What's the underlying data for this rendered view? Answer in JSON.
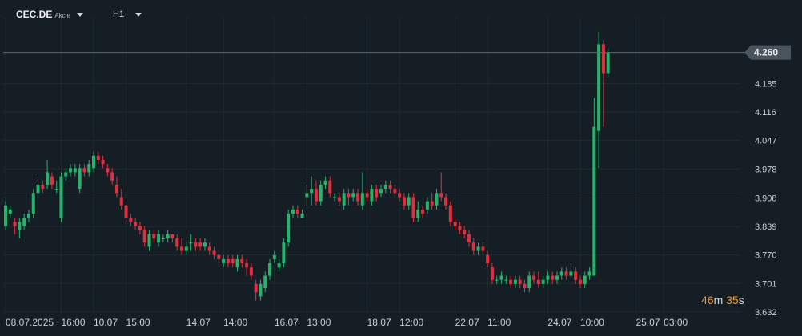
{
  "header": {
    "symbol": "CEC.DE",
    "symbol_type": "Akcie",
    "timeframe": "H1"
  },
  "countdown": {
    "minutes": "46",
    "minutes_unit": "m",
    "seconds": "35",
    "seconds_unit": "s"
  },
  "colors": {
    "background": "#161e25",
    "grid": "#1f2a32",
    "up": "#26b36b",
    "down": "#e0303f",
    "label_bg": "#4a545c",
    "label_text": "#eef1f3"
  },
  "chart_data": {
    "type": "candlestick",
    "title": "",
    "xlabel": "",
    "ylabel": "",
    "ylim": [
      3.632,
      4.329
    ],
    "y_ticks": [
      "4.260",
      "4.185",
      "4.116",
      "4.047",
      "3.978",
      "3.908",
      "3.839",
      "3.770",
      "3.701",
      "3.632"
    ],
    "x_ticks": [
      {
        "label": "08.07.2025",
        "index": 0
      },
      {
        "label": "16:00",
        "index": 12
      },
      {
        "label": "10.07",
        "index": 19
      },
      {
        "label": "15:00",
        "index": 26
      },
      {
        "label": "14.07",
        "index": 39
      },
      {
        "label": "14:00",
        "index": 47
      },
      {
        "label": "16.07",
        "index": 58
      },
      {
        "label": "13:00",
        "index": 65
      },
      {
        "label": "18.07",
        "index": 78
      },
      {
        "label": "12:00",
        "index": 85
      },
      {
        "label": "22.07",
        "index": 97
      },
      {
        "label": "11:00",
        "index": 104
      },
      {
        "label": "24.07",
        "index": 117
      },
      {
        "label": "10:00",
        "index": 124
      },
      {
        "label": "25.07",
        "index": 136
      },
      {
        "label": "03:00",
        "index": 142
      }
    ],
    "current_price": "4.260",
    "series": [
      {
        "ohlc": [
          [
            3.84,
            3.89,
            3.9,
            3.83
          ],
          [
            3.87,
            3.88,
            3.89,
            3.86
          ],
          [
            3.85,
            3.84,
            3.86,
            3.82
          ],
          [
            3.83,
            3.85,
            3.86,
            3.81
          ],
          [
            3.84,
            3.86,
            3.87,
            3.83
          ],
          [
            3.86,
            3.87,
            3.88,
            3.85
          ],
          [
            3.87,
            3.92,
            3.93,
            3.86
          ],
          [
            3.92,
            3.94,
            3.96,
            3.91
          ],
          [
            3.94,
            3.93,
            3.95,
            3.92
          ],
          [
            3.94,
            3.97,
            4.0,
            3.93
          ],
          [
            3.96,
            3.94,
            3.97,
            3.93
          ],
          [
            3.93,
            3.93,
            3.95,
            3.92
          ],
          [
            3.86,
            3.96,
            3.97,
            3.85
          ],
          [
            3.96,
            3.97,
            3.98,
            3.95
          ],
          [
            3.97,
            3.98,
            3.99,
            3.96
          ],
          [
            3.97,
            3.98,
            3.99,
            3.96
          ],
          [
            3.93,
            3.98,
            3.99,
            3.92
          ],
          [
            3.98,
            3.97,
            3.99,
            3.96
          ],
          [
            3.97,
            3.99,
            4.0,
            3.96
          ],
          [
            3.98,
            4.01,
            4.02,
            3.97
          ],
          [
            4.01,
            4.0,
            4.02,
            3.99
          ],
          [
            4.0,
            3.99,
            4.01,
            3.98
          ],
          [
            3.98,
            3.97,
            3.99,
            3.96
          ],
          [
            3.97,
            3.95,
            3.98,
            3.94
          ],
          [
            3.94,
            3.92,
            3.96,
            3.91
          ],
          [
            3.91,
            3.89,
            3.93,
            3.88
          ],
          [
            3.89,
            3.86,
            3.9,
            3.85
          ],
          [
            3.86,
            3.85,
            3.87,
            3.84
          ],
          [
            3.85,
            3.84,
            3.86,
            3.83
          ],
          [
            3.84,
            3.83,
            3.85,
            3.82
          ],
          [
            3.83,
            3.8,
            3.84,
            3.79
          ],
          [
            3.79,
            3.82,
            3.83,
            3.78
          ],
          [
            3.82,
            3.81,
            3.83,
            3.8
          ],
          [
            3.8,
            3.82,
            3.83,
            3.79
          ],
          [
            3.81,
            3.81,
            3.82,
            3.8
          ],
          [
            3.81,
            3.82,
            3.83,
            3.8
          ],
          [
            3.82,
            3.81,
            3.82,
            3.8
          ],
          [
            3.81,
            3.79,
            3.82,
            3.78
          ],
          [
            3.79,
            3.78,
            3.81,
            3.77
          ],
          [
            3.78,
            3.79,
            3.8,
            3.77
          ],
          [
            3.8,
            3.8,
            3.82,
            3.78
          ],
          [
            3.8,
            3.79,
            3.81,
            3.78
          ],
          [
            3.8,
            3.79,
            3.81,
            3.78
          ],
          [
            3.79,
            3.8,
            3.81,
            3.78
          ],
          [
            3.79,
            3.78,
            3.8,
            3.77
          ],
          [
            3.78,
            3.77,
            3.79,
            3.76
          ],
          [
            3.77,
            3.76,
            3.78,
            3.75
          ],
          [
            3.75,
            3.76,
            3.77,
            3.74
          ],
          [
            3.76,
            3.75,
            3.77,
            3.74
          ],
          [
            3.76,
            3.75,
            3.77,
            3.74
          ],
          [
            3.74,
            3.76,
            3.77,
            3.73
          ],
          [
            3.76,
            3.75,
            3.77,
            3.74
          ],
          [
            3.75,
            3.74,
            3.76,
            3.72
          ],
          [
            3.74,
            3.72,
            3.75,
            3.71
          ],
          [
            3.7,
            3.68,
            3.71,
            3.66
          ],
          [
            3.67,
            3.7,
            3.71,
            3.66
          ],
          [
            3.69,
            3.72,
            3.73,
            3.68
          ],
          [
            3.72,
            3.75,
            3.76,
            3.71
          ],
          [
            3.76,
            3.77,
            3.78,
            3.75
          ],
          [
            3.74,
            3.75,
            3.76,
            3.73
          ],
          [
            3.75,
            3.8,
            3.81,
            3.74
          ],
          [
            3.8,
            3.87,
            3.88,
            3.79
          ],
          [
            3.87,
            3.88,
            3.89,
            3.86
          ],
          [
            3.88,
            3.87,
            3.89,
            3.86
          ],
          [
            3.86,
            3.87,
            3.88,
            3.86
          ],
          [
            3.91,
            3.92,
            3.94,
            3.89
          ],
          [
            3.92,
            3.93,
            3.96,
            3.89
          ],
          [
            3.93,
            3.9,
            3.95,
            3.89
          ],
          [
            3.9,
            3.94,
            3.95,
            3.89
          ],
          [
            3.94,
            3.95,
            3.96,
            3.93
          ],
          [
            3.95,
            3.92,
            3.96,
            3.91
          ],
          [
            3.91,
            3.91,
            3.92,
            3.9
          ],
          [
            3.91,
            3.9,
            3.92,
            3.89
          ],
          [
            3.89,
            3.92,
            3.93,
            3.88
          ],
          [
            3.92,
            3.91,
            3.93,
            3.89
          ],
          [
            3.91,
            3.92,
            3.93,
            3.9
          ],
          [
            3.92,
            3.9,
            3.93,
            3.89
          ],
          [
            3.89,
            3.92,
            3.97,
            3.88
          ],
          [
            3.92,
            3.91,
            3.93,
            3.9
          ],
          [
            3.9,
            3.93,
            3.94,
            3.89
          ],
          [
            3.93,
            3.91,
            3.94,
            3.9
          ],
          [
            3.92,
            3.93,
            3.94,
            3.91
          ],
          [
            3.93,
            3.94,
            3.95,
            3.92
          ],
          [
            3.94,
            3.93,
            3.95,
            3.92
          ],
          [
            3.93,
            3.92,
            3.94,
            3.91
          ],
          [
            3.92,
            3.91,
            3.93,
            3.9
          ],
          [
            3.91,
            3.89,
            3.92,
            3.88
          ],
          [
            3.89,
            3.91,
            3.92,
            3.88
          ],
          [
            3.91,
            3.86,
            3.92,
            3.85
          ],
          [
            3.86,
            3.88,
            3.9,
            3.85
          ],
          [
            3.88,
            3.87,
            3.89,
            3.86
          ],
          [
            3.88,
            3.9,
            3.91,
            3.87
          ],
          [
            3.9,
            3.89,
            3.92,
            3.88
          ],
          [
            3.89,
            3.92,
            3.93,
            3.88
          ],
          [
            3.92,
            3.91,
            3.97,
            3.9
          ],
          [
            3.91,
            3.89,
            3.92,
            3.88
          ],
          [
            3.89,
            3.85,
            3.9,
            3.84
          ],
          [
            3.85,
            3.84,
            3.86,
            3.83
          ],
          [
            3.84,
            3.83,
            3.85,
            3.82
          ],
          [
            3.83,
            3.82,
            3.84,
            3.81
          ],
          [
            3.82,
            3.8,
            3.83,
            3.79
          ],
          [
            3.8,
            3.78,
            3.81,
            3.77
          ],
          [
            3.78,
            3.79,
            3.8,
            3.77
          ],
          [
            3.79,
            3.78,
            3.8,
            3.77
          ],
          [
            3.77,
            3.75,
            3.78,
            3.74
          ],
          [
            3.74,
            3.71,
            3.75,
            3.7
          ],
          [
            3.71,
            3.71,
            3.72,
            3.7
          ],
          [
            3.71,
            3.72,
            3.73,
            3.7
          ],
          [
            3.71,
            3.71,
            3.72,
            3.7
          ],
          [
            3.71,
            3.7,
            3.72,
            3.69
          ],
          [
            3.7,
            3.71,
            3.72,
            3.69
          ],
          [
            3.71,
            3.7,
            3.72,
            3.69
          ],
          [
            3.7,
            3.69,
            3.71,
            3.68
          ],
          [
            3.69,
            3.72,
            3.73,
            3.68
          ],
          [
            3.72,
            3.71,
            3.73,
            3.7
          ],
          [
            3.71,
            3.7,
            3.73,
            3.69
          ],
          [
            3.7,
            3.71,
            3.72,
            3.69
          ],
          [
            3.71,
            3.72,
            3.73,
            3.7
          ],
          [
            3.72,
            3.71,
            3.73,
            3.7
          ],
          [
            3.71,
            3.72,
            3.73,
            3.7
          ],
          [
            3.72,
            3.73,
            3.74,
            3.71
          ],
          [
            3.73,
            3.72,
            3.74,
            3.71
          ],
          [
            3.72,
            3.73,
            3.75,
            3.71
          ],
          [
            3.73,
            3.71,
            3.74,
            3.7
          ],
          [
            3.71,
            3.7,
            3.72,
            3.69
          ],
          [
            3.7,
            3.72,
            3.73,
            3.69
          ],
          [
            3.72,
            3.73,
            3.74,
            3.71
          ],
          [
            3.72,
            4.08,
            4.15,
            3.72
          ],
          [
            4.07,
            4.28,
            4.31,
            3.98
          ],
          [
            4.28,
            4.21,
            4.29,
            4.08
          ],
          [
            4.21,
            4.26,
            4.27,
            4.2
          ]
        ]
      }
    ]
  }
}
